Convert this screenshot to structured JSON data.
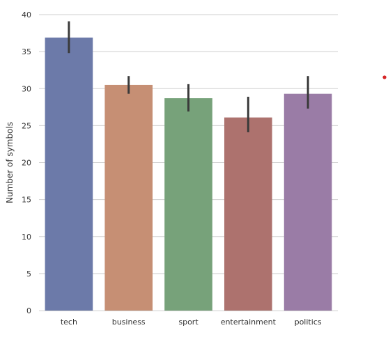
{
  "chart_data": {
    "type": "bar",
    "categories": [
      "tech",
      "business",
      "sport",
      "entertainment",
      "politics"
    ],
    "values": [
      36.9,
      30.5,
      28.7,
      26.1,
      29.3
    ],
    "errors": [
      [
        34.8,
        39.1
      ],
      [
        29.3,
        31.7
      ],
      [
        26.9,
        30.6
      ],
      [
        24.1,
        28.9
      ],
      [
        27.3,
        31.7
      ]
    ],
    "colors": [
      "#6c7aa9",
      "#c68f74",
      "#77a27a",
      "#ad726e",
      "#9a7ca6"
    ],
    "error_color": "#3a3a3a",
    "ylabel": "Number of symbols",
    "xlabel": "",
    "ylim": [
      0,
      40
    ],
    "yticks": [
      0,
      5,
      10,
      15,
      20,
      25,
      30,
      35,
      40
    ],
    "grid": "horizontal",
    "annotation_marker_color": "#d62728"
  }
}
